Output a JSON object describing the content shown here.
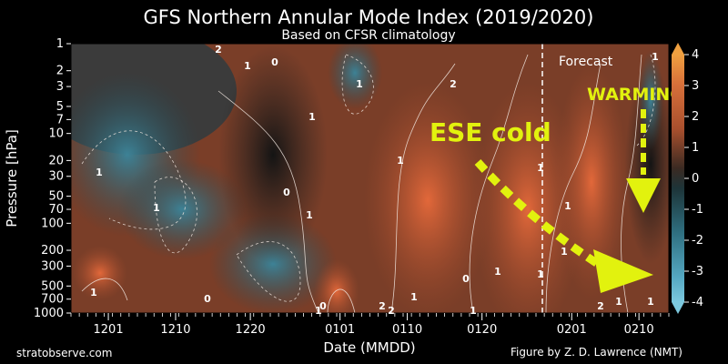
{
  "chart_data": {
    "type": "heatmap",
    "title": "GFS Northern Annular Mode Index (2019/2020)",
    "subtitle": "Based on CFSR climatology",
    "xlabel": "Date (MMDD)",
    "ylabel": "Pressure [hPa]",
    "x_ticks": [
      "1201",
      "1210",
      "1220",
      "0101",
      "0110",
      "0120",
      "0201",
      "0210"
    ],
    "y_ticks": [
      1,
      2,
      3,
      5,
      7,
      10,
      20,
      30,
      50,
      70,
      100,
      200,
      300,
      500,
      700,
      1000
    ],
    "y_scale": "log",
    "y_reversed": true,
    "colorbar": {
      "ticks": [
        4,
        3,
        2,
        1,
        0,
        -1,
        -2,
        -3,
        -4
      ],
      "range": [
        -4,
        4
      ],
      "positive_color": "#b8512a",
      "negative_color": "#3f8fa7"
    },
    "grid": false,
    "forecast_label": "Forecast",
    "contour_labels": [
      "2",
      "1",
      "0",
      "1",
      "1",
      "2",
      "1",
      "0",
      "0",
      "1",
      "1",
      "1",
      "0",
      "1",
      "1",
      "1",
      "1",
      "0",
      "1",
      "2",
      "1",
      "1",
      "1",
      "1",
      "2",
      "2",
      "1",
      "1",
      "1"
    ],
    "annotations": [
      "ESE cold",
      "WARMING"
    ]
  },
  "credits": {
    "left": "stratobserve.com",
    "right": "Figure by Z. D. Lawrence (NMT)"
  },
  "colors": {
    "background": "#000000",
    "annotation": "#e2f20e"
  }
}
